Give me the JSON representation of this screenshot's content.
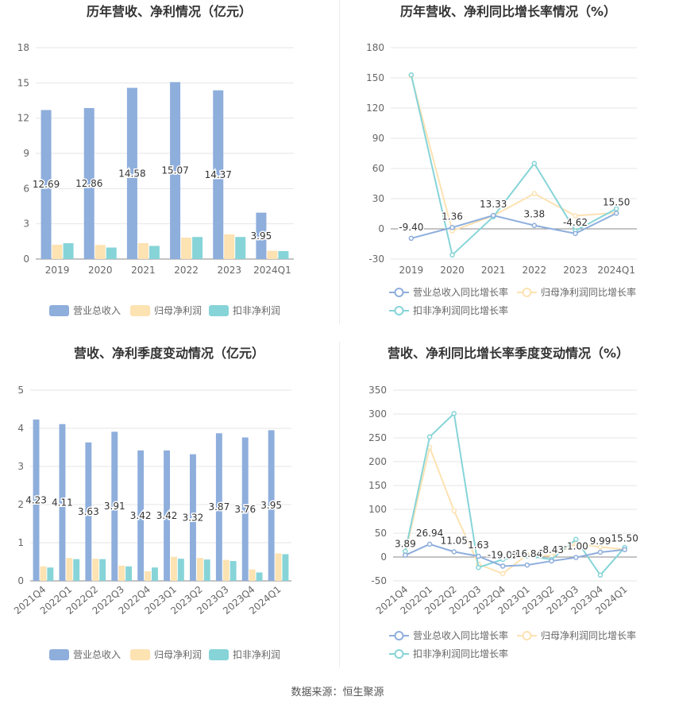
{
  "colors": {
    "revenue": "#8eaedc",
    "net_profit": "#fde2b2",
    "deducted_profit": "#86d4d8",
    "axis_text": "#666666",
    "grid": "#e6e6e6",
    "title": "#333333"
  },
  "footer": {
    "label": "数据来源：",
    "source": "恒生聚源"
  },
  "chart_data": [
    {
      "type": "bar",
      "title": "历年营收、净利情况（亿元）",
      "categories": [
        "2019",
        "2020",
        "2021",
        "2022",
        "2023",
        "2024Q1"
      ],
      "ylim": [
        0,
        18
      ],
      "yticks": [
        0,
        3,
        6,
        9,
        12,
        15,
        18
      ],
      "series": [
        {
          "name": "营业总收入",
          "values": [
            12.69,
            12.86,
            14.58,
            15.07,
            14.37,
            3.95
          ],
          "labels": [
            "12.69",
            "12.86",
            "14.58",
            "15.07",
            "14.37",
            "3.95"
          ]
        },
        {
          "name": "归母净利润",
          "values": [
            1.22,
            1.2,
            1.36,
            1.82,
            2.1,
            0.7
          ]
        },
        {
          "name": "扣非净利润",
          "values": [
            1.35,
            0.98,
            1.12,
            1.88,
            1.88,
            0.68
          ]
        }
      ]
    },
    {
      "type": "line",
      "title": "历年营收、净利同比增长率情况（%）",
      "categories": [
        "2019",
        "2020",
        "2021",
        "2022",
        "2023",
        "2024Q1"
      ],
      "ylim": [
        -30,
        180
      ],
      "yticks": [
        -30,
        0,
        30,
        60,
        90,
        120,
        150,
        180
      ],
      "series": [
        {
          "name": "营业总收入同比增长率",
          "values": [
            -9.4,
            1.36,
            13.33,
            3.38,
            -4.62,
            15.5
          ],
          "labels": [
            "-9.40",
            "1.36",
            "13.33",
            "3.38",
            "-4.62",
            "15.50"
          ]
        },
        {
          "name": "归母净利润同比增长率",
          "values": [
            152,
            -2,
            13,
            35,
            13,
            16
          ]
        },
        {
          "name": "扣非净利润同比增长率",
          "values": [
            153,
            -26,
            12,
            65,
            -2,
            20
          ]
        }
      ]
    },
    {
      "type": "bar",
      "title": "营收、净利季度变动情况（亿元）",
      "categories": [
        "2021Q4",
        "2022Q1",
        "2022Q2",
        "2022Q3",
        "2022Q4",
        "2023Q1",
        "2023Q2",
        "2023Q3",
        "2023Q4",
        "2024Q1"
      ],
      "ylim": [
        0,
        5
      ],
      "yticks": [
        0,
        1,
        2,
        3,
        4,
        5
      ],
      "series": [
        {
          "name": "营业总收入",
          "values": [
            4.23,
            4.11,
            3.63,
            3.91,
            3.42,
            3.42,
            3.32,
            3.87,
            3.76,
            3.95
          ],
          "labels": [
            "4.23",
            "4.11",
            "3.63",
            "3.91",
            "3.42",
            "3.42",
            "3.32",
            "3.87",
            "3.76",
            "3.95"
          ]
        },
        {
          "name": "归母净利润",
          "values": [
            0.38,
            0.6,
            0.58,
            0.4,
            0.25,
            0.63,
            0.6,
            0.55,
            0.3,
            0.72
          ]
        },
        {
          "name": "扣非净利润",
          "values": [
            0.35,
            0.57,
            0.57,
            0.38,
            0.35,
            0.58,
            0.56,
            0.52,
            0.22,
            0.7
          ]
        }
      ]
    },
    {
      "type": "line",
      "title": "营收、净利同比增长率季度变动情况（%）",
      "categories": [
        "2021Q4",
        "2022Q1",
        "2022Q2",
        "2022Q3",
        "2022Q4",
        "2023Q1",
        "2023Q2",
        "2023Q3",
        "2023Q4",
        "2024Q1"
      ],
      "ylim": [
        -50,
        350
      ],
      "yticks": [
        -50,
        0,
        50,
        100,
        150,
        200,
        250,
        300,
        350
      ],
      "series": [
        {
          "name": "营业总收入同比增长率",
          "values": [
            3.89,
            26.94,
            11.05,
            1.63,
            -19.02,
            -16.84,
            -8.43,
            -1.0,
            9.99,
            15.5
          ],
          "labels": [
            "3.89",
            "26.94",
            "11.05",
            "1.63",
            "-19.02",
            "-16.84",
            "-8.43",
            "-1.00",
            "9.99",
            "15.50"
          ]
        },
        {
          "name": "归母净利润同比增长率",
          "values": [
            8,
            230,
            97,
            -15,
            -35,
            5,
            2,
            28,
            21,
            16
          ]
        },
        {
          "name": "扣非净利润同比增长率",
          "values": [
            12,
            252,
            301,
            -22,
            -5,
            2,
            -5,
            37,
            -38,
            20
          ]
        }
      ]
    }
  ]
}
